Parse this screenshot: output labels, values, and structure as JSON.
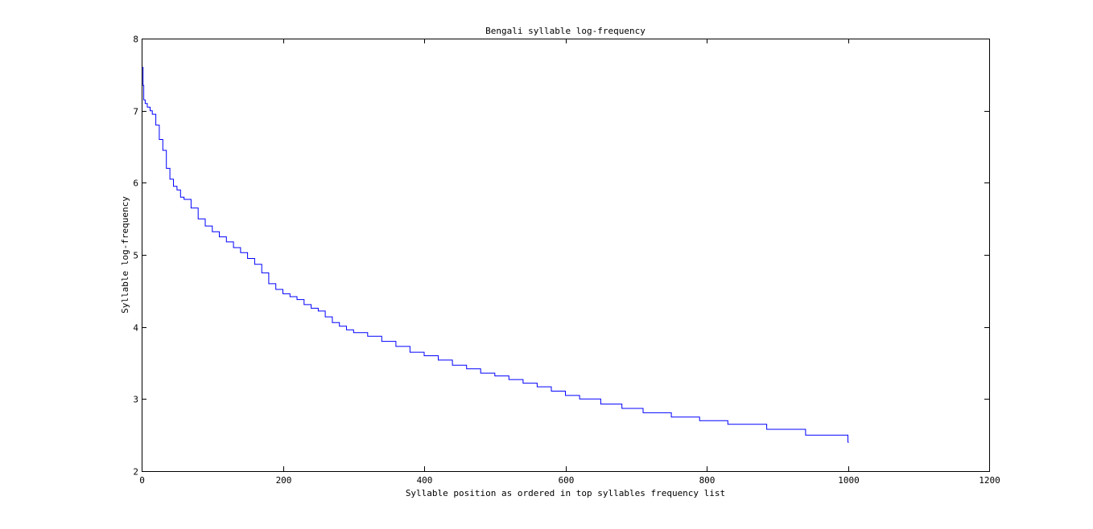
{
  "chart_data": {
    "type": "line",
    "title": "Bengali syllable log-frequency",
    "xlabel": "Syllable position as ordered in top syllables frequency list",
    "ylabel": "Syllable log-frequency",
    "xlim": [
      0,
      1200
    ],
    "ylim": [
      2,
      8
    ],
    "xticks": [
      0,
      200,
      400,
      600,
      800,
      1000,
      1200
    ],
    "yticks": [
      2,
      3,
      4,
      5,
      6,
      7,
      8
    ],
    "grid": false,
    "line_color": "#0000ff",
    "series": [
      {
        "x": [
          1,
          2,
          3,
          5,
          8,
          12,
          15,
          20,
          25,
          30,
          35,
          40,
          45,
          50,
          55,
          60,
          70,
          80,
          90,
          100,
          110,
          120,
          130,
          140,
          150,
          160,
          170,
          180,
          190,
          200,
          210,
          220,
          230,
          240,
          250,
          260,
          270,
          280,
          290,
          300,
          320,
          340,
          360,
          380,
          400,
          420,
          440,
          460,
          480,
          500,
          520,
          540,
          560,
          580,
          600,
          620,
          650,
          680,
          710,
          750,
          790,
          830,
          885,
          940,
          1000
        ],
        "y": [
          7.6,
          7.35,
          7.15,
          7.1,
          7.05,
          7.0,
          6.95,
          6.8,
          6.6,
          6.45,
          6.2,
          6.05,
          5.95,
          5.9,
          5.8,
          5.77,
          5.65,
          5.5,
          5.4,
          5.32,
          5.25,
          5.18,
          5.1,
          5.03,
          4.95,
          4.87,
          4.75,
          4.6,
          4.52,
          4.46,
          4.42,
          4.38,
          4.31,
          4.26,
          4.22,
          4.14,
          4.06,
          4.01,
          3.96,
          3.92,
          3.87,
          3.8,
          3.73,
          3.65,
          3.6,
          3.54,
          3.47,
          3.42,
          3.36,
          3.32,
          3.27,
          3.22,
          3.17,
          3.11,
          3.05,
          3.0,
          2.93,
          2.87,
          2.81,
          2.75,
          2.7,
          2.65,
          2.58,
          2.5,
          2.4
        ]
      }
    ]
  }
}
